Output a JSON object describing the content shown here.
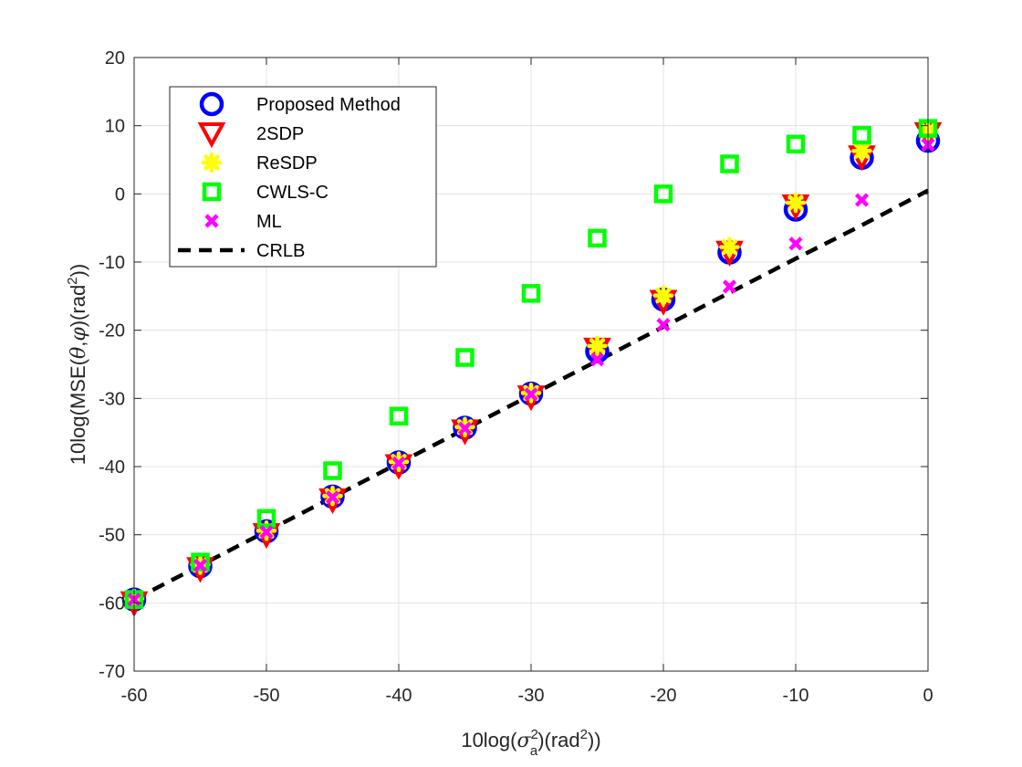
{
  "chart_data": {
    "type": "scatter",
    "title": "",
    "xlabel": {
      "prefix": "10log(",
      "sigma": "σ",
      "sigma_sup": "2",
      "sigma_sub": "a",
      "middle": ")(rad",
      "rad_sup": "2",
      "suffix": "))"
    },
    "ylabel": {
      "prefix": "10log(MSE(",
      "theta": "θ",
      "comma": ",",
      "phi": "φ",
      "middle": ")(rad",
      "rad_sup": "2",
      "suffix": "))"
    },
    "xlim": [
      -60,
      0
    ],
    "ylim": [
      -70,
      20
    ],
    "xticks": [
      -60,
      -50,
      -40,
      -30,
      -20,
      -10,
      0
    ],
    "yticks": [
      -70,
      -60,
      -50,
      -40,
      -30,
      -20,
      -10,
      0,
      10,
      20
    ],
    "grid": true,
    "legend_position": "top-left",
    "x": [
      -60,
      -55,
      -50,
      -45,
      -40,
      -35,
      -30,
      -25,
      -20,
      -15,
      -10,
      -5,
      0
    ],
    "series": [
      {
        "name": "Proposed Method",
        "marker": "circle",
        "color": "#0000ff",
        "values": [
          -59.5,
          -54.6,
          -49.5,
          -44.4,
          -39.4,
          -34.3,
          -29.3,
          -23.1,
          -15.5,
          -8.6,
          -2.3,
          5.3,
          7.8
        ]
      },
      {
        "name": "2SDP",
        "marker": "triangle-down",
        "color": "#ff0000",
        "values": [
          -59.9,
          -54.9,
          -49.9,
          -44.8,
          -39.8,
          -34.7,
          -29.7,
          -22.7,
          -15.7,
          -8.5,
          -1.7,
          5.5,
          8.9
        ]
      },
      {
        "name": "ReSDP",
        "marker": "asterisk",
        "color": "#ffff00",
        "values": [
          -59.4,
          -54.4,
          -49.4,
          -44.3,
          -39.3,
          -34.2,
          -29.2,
          -22.3,
          -14.9,
          -7.8,
          -1.3,
          6.3,
          9.3
        ]
      },
      {
        "name": "CWLS-C",
        "marker": "square",
        "color": "#00ff00",
        "values": [
          -59.5,
          -54.0,
          -47.6,
          -40.6,
          -32.6,
          -24.0,
          -14.6,
          -6.5,
          0.0,
          4.4,
          7.3,
          8.6,
          9.6
        ]
      },
      {
        "name": "ML",
        "marker": "x",
        "color": "#ff00ff",
        "values": [
          -59.5,
          -54.5,
          -49.6,
          -44.5,
          -39.5,
          -34.4,
          -29.4,
          -24.3,
          -19.2,
          -13.6,
          -7.3,
          -0.9,
          7.2
        ]
      },
      {
        "name": "CRLB",
        "marker": "dashed-line",
        "color": "#000000",
        "values": [
          -59.5,
          -54.5,
          -49.5,
          -44.5,
          -39.5,
          -34.5,
          -29.5,
          -24.5,
          -19.5,
          -14.5,
          -9.5,
          -4.6,
          0.5
        ]
      }
    ]
  }
}
